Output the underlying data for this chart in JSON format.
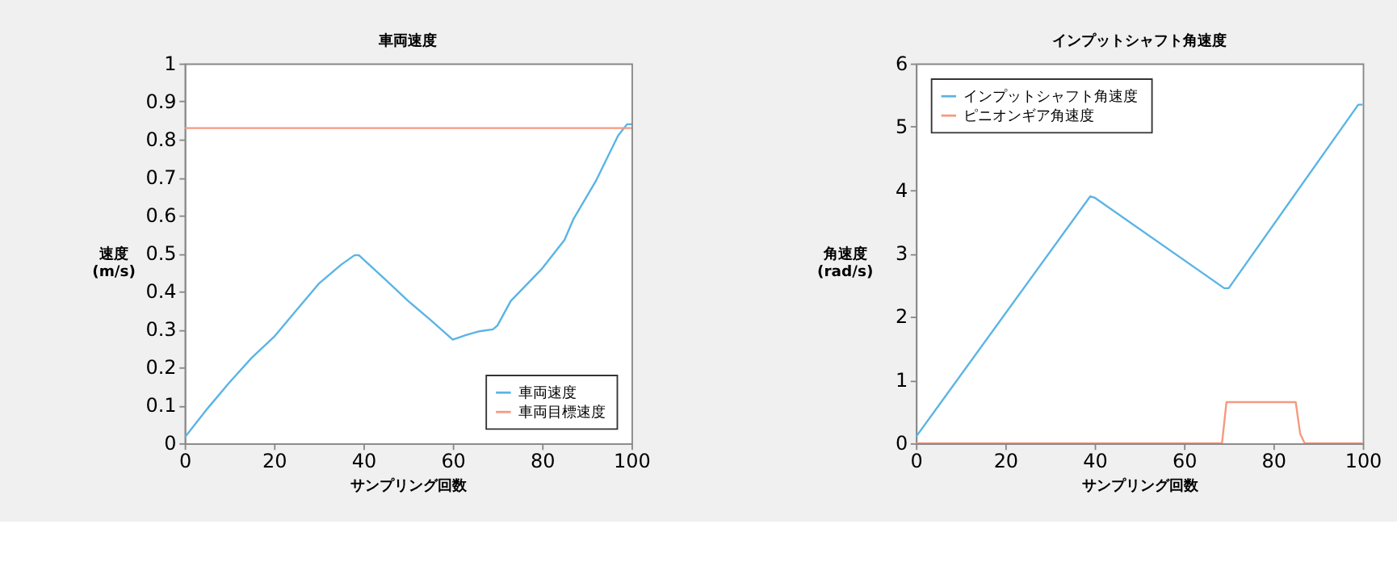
{
  "chart_data": [
    {
      "type": "line",
      "title": "車両速度",
      "xlabel": "サンプリング回数",
      "ylabel": "速度\n(m/s)",
      "xlim": [
        0,
        100
      ],
      "xticks": [
        0,
        20,
        40,
        60,
        80,
        100
      ],
      "ylim": [
        0,
        1
      ],
      "yticks": [
        0,
        0.1,
        0.2,
        0.3,
        0.4,
        0.5,
        0.6,
        0.7,
        0.8,
        0.9,
        1
      ],
      "grid": false,
      "legend": "bottom right",
      "series": [
        {
          "name": "車両速度",
          "color": "#5ab4e5",
          "x": [
            0,
            5,
            10,
            15,
            20,
            25,
            30,
            35,
            38,
            39,
            45,
            50,
            55,
            60,
            63,
            66,
            69,
            70,
            73,
            80,
            85,
            87,
            92,
            97,
            99,
            100
          ],
          "values": [
            0.015,
            0.09,
            0.16,
            0.225,
            0.28,
            0.35,
            0.42,
            0.47,
            0.495,
            0.495,
            0.43,
            0.375,
            0.325,
            0.273,
            0.285,
            0.295,
            0.3,
            0.31,
            0.375,
            0.46,
            0.535,
            0.59,
            0.69,
            0.81,
            0.84,
            0.84
          ]
        },
        {
          "name": "車両目標速度",
          "color": "#f59a7f",
          "x": [
            0,
            100
          ],
          "values": [
            0.83,
            0.83
          ]
        }
      ]
    },
    {
      "type": "line",
      "title": "インプットシャフト角速度",
      "xlabel": "サンプリング回数",
      "ylabel": "角速度\n(rad/s)",
      "xlim": [
        0,
        100
      ],
      "xticks": [
        0,
        20,
        40,
        60,
        80,
        100
      ],
      "ylim": [
        0,
        6
      ],
      "yticks": [
        0,
        1,
        2,
        3,
        4,
        5,
        6
      ],
      "grid": false,
      "legend": "top left",
      "series": [
        {
          "name": "インプットシャフト角速度",
          "color": "#5ab4e5",
          "x": [
            0,
            39,
            40,
            69,
            70,
            99,
            100
          ],
          "values": [
            0.1,
            3.9,
            3.88,
            2.45,
            2.45,
            5.35,
            5.35
          ]
        },
        {
          "name": "ピニオンギア角速度",
          "color": "#f59a7f",
          "x": [
            0,
            68.5,
            69.5,
            85,
            86,
            87,
            100
          ],
          "values": [
            0,
            0,
            0.65,
            0.65,
            0.15,
            0,
            0
          ]
        }
      ]
    }
  ]
}
